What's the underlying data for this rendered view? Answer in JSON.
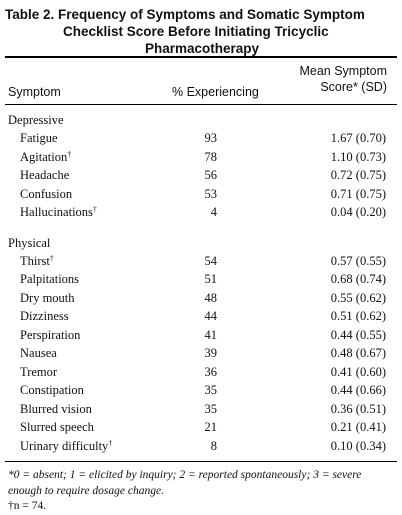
{
  "title": {
    "line1": "Table 2.  Frequency of Symptoms and Somatic Symptom",
    "line2": "Checklist Score Before Initiating Tricyclic",
    "line3": "Pharmacotherapy"
  },
  "columns": {
    "symptom": "Symptom",
    "percent": "% Experiencing",
    "mean_line1": "Mean Symptom",
    "mean_line2": "Score* (SD)"
  },
  "groups": [
    {
      "name": "Depressive",
      "rows": [
        {
          "symptom": "Fatigue",
          "mark": "",
          "percent": "93",
          "score": "1.67 (0.70)"
        },
        {
          "symptom": "Agitation",
          "mark": "†",
          "percent": "78",
          "score": "1.10 (0.73)"
        },
        {
          "symptom": "Headache",
          "mark": "",
          "percent": "56",
          "score": "0.72 (0.75)"
        },
        {
          "symptom": "Confusion",
          "mark": "",
          "percent": "53",
          "score": "0.71 (0.75)"
        },
        {
          "symptom": "Hallucinations",
          "mark": "†",
          "percent": "4",
          "score": "0.04 (0.20)"
        }
      ]
    },
    {
      "name": "Physical",
      "rows": [
        {
          "symptom": "Thirst",
          "mark": "†",
          "percent": "54",
          "score": "0.57 (0.55)"
        },
        {
          "symptom": "Palpitations",
          "mark": "",
          "percent": "51",
          "score": "0.68 (0.74)"
        },
        {
          "symptom": "Dry mouth",
          "mark": "",
          "percent": "48",
          "score": "0.55 (0.62)"
        },
        {
          "symptom": "Dizziness",
          "mark": "",
          "percent": "44",
          "score": "0.51 (0.62)"
        },
        {
          "symptom": "Perspiration",
          "mark": "",
          "percent": "41",
          "score": "0.44 (0.55)"
        },
        {
          "symptom": "Nausea",
          "mark": "",
          "percent": "39",
          "score": "0.48 (0.67)"
        },
        {
          "symptom": "Tremor",
          "mark": "",
          "percent": "36",
          "score": "0.41 (0.60)"
        },
        {
          "symptom": "Constipation",
          "mark": "",
          "percent": "35",
          "score": "0.44 (0.66)"
        },
        {
          "symptom": "Blurred vision",
          "mark": "",
          "percent": "35",
          "score": "0.36 (0.51)"
        },
        {
          "symptom": "Slurred speech",
          "mark": "",
          "percent": "21",
          "score": "0.21 (0.41)"
        },
        {
          "symptom": "Urinary difficulty",
          "mark": "†",
          "percent": "8",
          "score": "0.10 (0.34)"
        }
      ]
    }
  ],
  "footnotes": {
    "star_text": "*0 = absent; 1 = elicited by inquiry; 2 = reported spontaneously; 3 = severe enough to require dosage change.",
    "dagger_text": "†n = 74."
  }
}
